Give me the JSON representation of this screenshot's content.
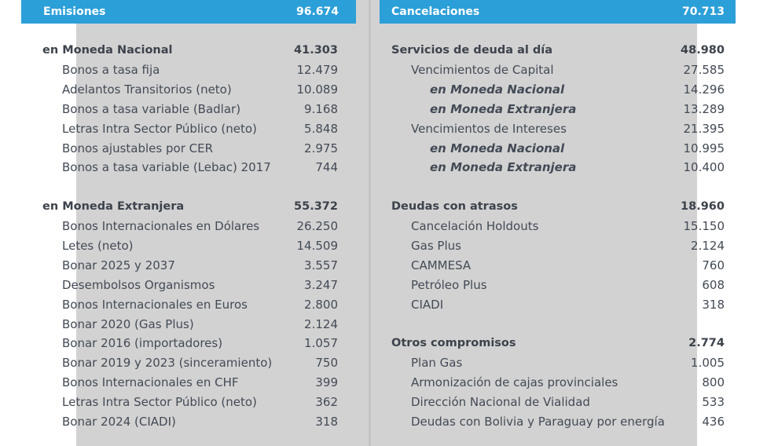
{
  "emisiones": {
    "title": "Emisiones",
    "total": "96.674",
    "groups": [
      {
        "label": "en Moneda Nacional",
        "value": "41.303",
        "items": [
          {
            "label": "Bonos a tasa fija",
            "value": "12.479"
          },
          {
            "label": "Adelantos Transitorios (neto)",
            "value": "10.089"
          },
          {
            "label": "Bonos a tasa variable (Badlar)",
            "value": "9.168"
          },
          {
            "label": "Letras Intra Sector Público (neto)",
            "value": "5.848"
          },
          {
            "label": "Bonos ajustables por CER",
            "value": "2.975"
          },
          {
            "label": "Bonos a tasa variable (Lebac) 2017",
            "value": "744"
          }
        ]
      },
      {
        "label": "en Moneda Extranjera",
        "value": "55.372",
        "items": [
          {
            "label": "Bonos Internacionales en Dólares",
            "value": "26.250"
          },
          {
            "label": "Letes (neto)",
            "value": "14.509"
          },
          {
            "label": "Bonar 2025 y 2037",
            "value": "3.557"
          },
          {
            "label": "Desembolsos Organismos",
            "value": "3.247"
          },
          {
            "label": "Bonos Internacionales en Euros",
            "value": "2.800"
          },
          {
            "label": "Bonar 2020 (Gas Plus)",
            "value": "2.124"
          },
          {
            "label": "Bonar 2016 (importadores)",
            "value": "1.057"
          },
          {
            "label": "Bonar 2019 y 2023 (sinceramiento)",
            "value": "750"
          },
          {
            "label": "Bonos Internacionales en CHF",
            "value": "399"
          },
          {
            "label": "Letras Intra Sector Público (neto)",
            "value": "362"
          },
          {
            "label": "Bonar 2024 (CIADI)",
            "value": "318"
          }
        ]
      }
    ]
  },
  "cancelaciones": {
    "title": "Cancelaciones",
    "total": "70.713",
    "groups": [
      {
        "label": "Servicios de deuda al día",
        "value": "48.980",
        "items": [
          {
            "label": "Vencimientos de Capital",
            "value": "27.585",
            "level": "item"
          },
          {
            "label": "en Moneda Nacional",
            "value": "14.296",
            "level": "sub"
          },
          {
            "label": "en Moneda Extranjera",
            "value": "13.289",
            "level": "sub"
          },
          {
            "label": "Vencimientos de Intereses",
            "value": "21.395",
            "level": "item"
          },
          {
            "label": "en Moneda Nacional",
            "value": "10.995",
            "level": "sub"
          },
          {
            "label": "en Moneda Extranjera",
            "value": "10.400",
            "level": "sub"
          }
        ]
      },
      {
        "label": "Deudas con atrasos",
        "value": "18.960",
        "items": [
          {
            "label": "Cancelación Holdouts",
            "value": "15.150",
            "level": "item"
          },
          {
            "label": "Gas Plus",
            "value": "2.124",
            "level": "item"
          },
          {
            "label": "CAMMESA",
            "value": "760",
            "level": "item"
          },
          {
            "label": "Petróleo Plus",
            "value": "608",
            "level": "item"
          },
          {
            "label": "CIADI",
            "value": "318",
            "level": "item"
          }
        ]
      },
      {
        "label": "Otros compromisos",
        "value": "2.774",
        "items": [
          {
            "label": "Plan Gas",
            "value": "1.005",
            "level": "item"
          },
          {
            "label": "Armonización de cajas provinciales",
            "value": "800",
            "level": "item"
          },
          {
            "label": "Dirección Nacional de Vialidad",
            "value": "533",
            "level": "item"
          },
          {
            "label": "Deudas con Bolivia y Paraguay por energía",
            "value": "436",
            "level": "item"
          }
        ]
      }
    ]
  }
}
